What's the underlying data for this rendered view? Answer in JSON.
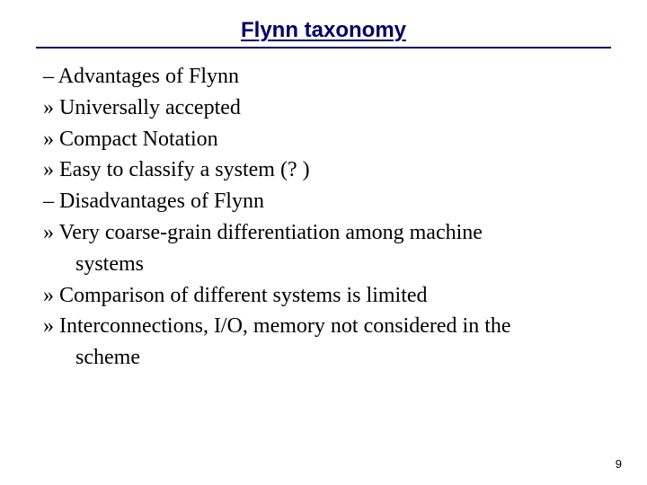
{
  "slide": {
    "title": "Flynn taxonomy",
    "title_color": "#000066",
    "rule_color": "#000066",
    "bg_color": "#ffffff",
    "text_color": "#000000",
    "title_font_family": "Arial",
    "body_font_family": "Times New Roman",
    "title_fontsize_pt": 18,
    "body_fontsize_pt": 18,
    "page_number": "9",
    "lines": [
      {
        "text": "– Advantages of Flynn",
        "indent": 0
      },
      {
        "text": "» Universally accepted",
        "indent": 0
      },
      {
        "text": "» Compact Notation",
        "indent": 0
      },
      {
        "text": "» Easy to classify a system (? )",
        "indent": 0
      },
      {
        "text": "– Disadvantages of Flynn",
        "indent": 0
      },
      {
        "text": "» Very coarse-grain differentiation among machine",
        "indent": 0
      },
      {
        "text": "systems",
        "indent": 1
      },
      {
        "text": "» Comparison of different systems is limited",
        "indent": 0
      },
      {
        "text": "» Interconnections, I/O, memory not considered in the",
        "indent": 0
      },
      {
        "text": "scheme",
        "indent": 1
      }
    ]
  }
}
